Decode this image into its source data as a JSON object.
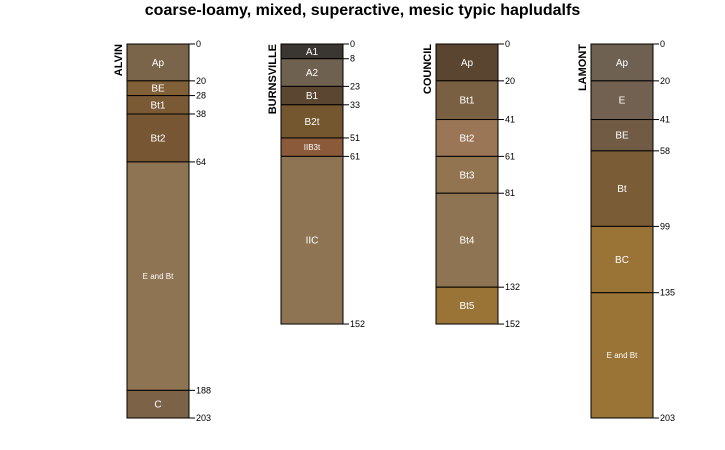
{
  "chart_data": {
    "type": "soil-profile-sketch",
    "title": "coarse-loamy, mixed, superactive, mesic typic hapludalfs",
    "depth_range": [
      0,
      203
    ],
    "profiles": [
      {
        "name": "ALVIN",
        "horizons": [
          {
            "name": "Ap",
            "top": 0,
            "bottom": 20,
            "color": "#7A654B"
          },
          {
            "name": "BE",
            "top": 20,
            "bottom": 28,
            "color": "#815F37"
          },
          {
            "name": "Bt1",
            "top": 28,
            "bottom": 38,
            "color": "#7A5A35"
          },
          {
            "name": "Bt2",
            "top": 38,
            "bottom": 64,
            "color": "#765633"
          },
          {
            "name": "E and Bt",
            "top": 64,
            "bottom": 188,
            "color": "#8E7452"
          },
          {
            "name": "C",
            "top": 188,
            "bottom": 203,
            "color": "#7C6347"
          }
        ]
      },
      {
        "name": "BURNSVILLE",
        "horizons": [
          {
            "name": "A1",
            "top": 0,
            "bottom": 8,
            "color": "#3A3632"
          },
          {
            "name": "A2",
            "top": 8,
            "bottom": 23,
            "color": "#6E6150"
          },
          {
            "name": "B1",
            "top": 23,
            "bottom": 33,
            "color": "#5A4631"
          },
          {
            "name": "B2t",
            "top": 33,
            "bottom": 51,
            "color": "#74562F"
          },
          {
            "name": "IIB3t",
            "top": 51,
            "bottom": 61,
            "color": "#8A5A3A"
          },
          {
            "name": "IIC",
            "top": 61,
            "bottom": 152,
            "color": "#8E7453"
          }
        ]
      },
      {
        "name": "COUNCIL",
        "horizons": [
          {
            "name": "Ap",
            "top": 0,
            "bottom": 20,
            "color": "#5A4630"
          },
          {
            "name": "Bt1",
            "top": 20,
            "bottom": 41,
            "color": "#7A6042"
          },
          {
            "name": "Bt2",
            "top": 41,
            "bottom": 61,
            "color": "#9A7656"
          },
          {
            "name": "Bt3",
            "top": 61,
            "bottom": 81,
            "color": "#937450"
          },
          {
            "name": "Bt4",
            "top": 81,
            "bottom": 132,
            "color": "#8E7452"
          },
          {
            "name": "Bt5",
            "top": 132,
            "bottom": 152,
            "color": "#9A7437"
          }
        ]
      },
      {
        "name": "LAMONT",
        "horizons": [
          {
            "name": "Ap",
            "top": 0,
            "bottom": 20,
            "color": "#6E6152"
          },
          {
            "name": "E",
            "top": 20,
            "bottom": 41,
            "color": "#726050"
          },
          {
            "name": "BE",
            "top": 41,
            "bottom": 58,
            "color": "#715B44"
          },
          {
            "name": "Bt",
            "top": 58,
            "bottom": 99,
            "color": "#7A5C37"
          },
          {
            "name": "BC",
            "top": 99,
            "bottom": 135,
            "color": "#9A7437"
          },
          {
            "name": "E and Bt",
            "top": 135,
            "bottom": 203,
            "color": "#9A7436"
          }
        ]
      }
    ]
  }
}
